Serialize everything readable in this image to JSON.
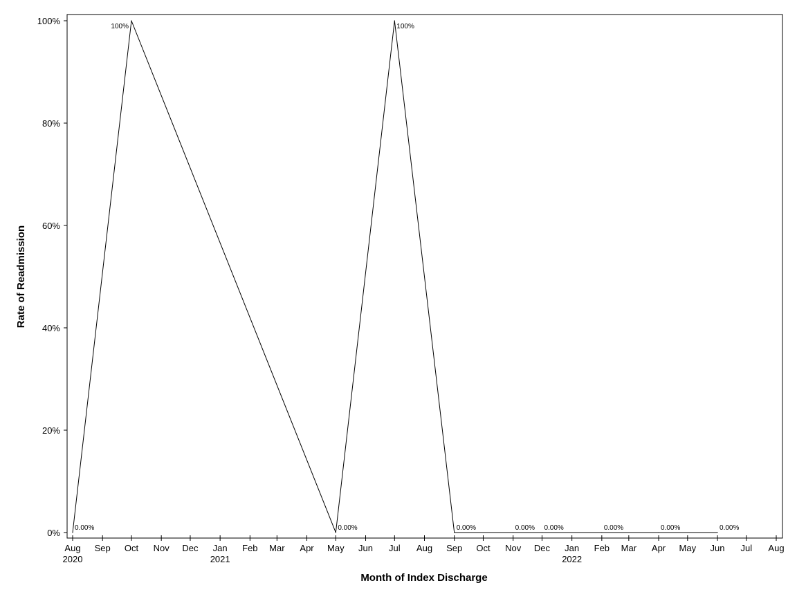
{
  "chart_data": {
    "type": "line",
    "title": "",
    "xlabel": "Month of Index Discharge",
    "ylabel": "Rate of Readmission",
    "ylim": [
      0,
      100
    ],
    "y_ticks": [
      "0%",
      "20%",
      "40%",
      "60%",
      "80%",
      "100%"
    ],
    "y_tick_values": [
      0,
      20,
      40,
      60,
      80,
      100
    ],
    "x_range": [
      "2020-08-01",
      "2022-08-01"
    ],
    "x_ticks": [
      {
        "date": "2020-08-01",
        "label": "Aug",
        "year": "2020"
      },
      {
        "date": "2020-09-01",
        "label": "Sep",
        "year": ""
      },
      {
        "date": "2020-10-01",
        "label": "Oct",
        "year": ""
      },
      {
        "date": "2020-11-01",
        "label": "Nov",
        "year": ""
      },
      {
        "date": "2020-12-01",
        "label": "Dec",
        "year": ""
      },
      {
        "date": "2021-01-01",
        "label": "Jan",
        "year": "2021"
      },
      {
        "date": "2021-02-01",
        "label": "Feb",
        "year": ""
      },
      {
        "date": "2021-03-01",
        "label": "Mar",
        "year": ""
      },
      {
        "date": "2021-04-01",
        "label": "Apr",
        "year": ""
      },
      {
        "date": "2021-05-01",
        "label": "May",
        "year": ""
      },
      {
        "date": "2021-06-01",
        "label": "Jun",
        "year": ""
      },
      {
        "date": "2021-07-01",
        "label": "Jul",
        "year": ""
      },
      {
        "date": "2021-08-01",
        "label": "Aug",
        "year": ""
      },
      {
        "date": "2021-09-01",
        "label": "Sep",
        "year": ""
      },
      {
        "date": "2021-10-01",
        "label": "Oct",
        "year": ""
      },
      {
        "date": "2021-11-01",
        "label": "Nov",
        "year": ""
      },
      {
        "date": "2021-12-01",
        "label": "Dec",
        "year": ""
      },
      {
        "date": "2022-01-01",
        "label": "Jan",
        "year": "2022"
      },
      {
        "date": "2022-02-01",
        "label": "Feb",
        "year": ""
      },
      {
        "date": "2022-03-01",
        "label": "Mar",
        "year": ""
      },
      {
        "date": "2022-04-01",
        "label": "Apr",
        "year": ""
      },
      {
        "date": "2022-05-01",
        "label": "May",
        "year": ""
      },
      {
        "date": "2022-06-01",
        "label": "Jun",
        "year": ""
      },
      {
        "date": "2022-07-01",
        "label": "Jul",
        "year": ""
      },
      {
        "date": "2022-08-01",
        "label": "Aug",
        "year": ""
      }
    ],
    "series": [
      {
        "points": [
          {
            "x": "2020-08-01",
            "y": 0,
            "label": "0.00%",
            "label_side": "right"
          },
          {
            "x": "2020-10-01",
            "y": 100,
            "label": "100%",
            "label_side": "left"
          },
          {
            "x": "2021-05-01",
            "y": 0,
            "label": "0.00%",
            "label_side": "right"
          },
          {
            "x": "2021-07-01",
            "y": 100,
            "label": "100%",
            "label_side": "right"
          },
          {
            "x": "2021-09-01",
            "y": 0,
            "label": "0.00%",
            "label_side": "right"
          },
          {
            "x": "2021-11-01",
            "y": 0,
            "label": "0.00%",
            "label_side": "right"
          },
          {
            "x": "2021-12-01",
            "y": 0,
            "label": "0.00%",
            "label_side": "right"
          },
          {
            "x": "2022-02-01",
            "y": 0,
            "label": "0.00%",
            "label_side": "right"
          },
          {
            "x": "2022-04-01",
            "y": 0,
            "label": "0.00%",
            "label_side": "right"
          },
          {
            "x": "2022-06-01",
            "y": 0,
            "label": "0.00%",
            "label_side": "right"
          }
        ]
      }
    ],
    "grid": false,
    "legend": "none",
    "line_color": "#000000"
  }
}
